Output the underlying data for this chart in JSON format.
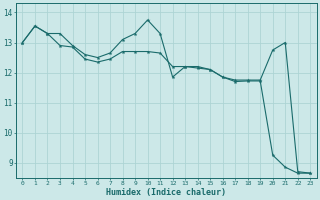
{
  "xlabel": "Humidex (Indice chaleur)",
  "bg_color": "#cce8e8",
  "grid_color": "#add4d4",
  "line_color": "#1a6b6b",
  "xlim": [
    -0.5,
    23.5
  ],
  "ylim": [
    8.5,
    14.3
  ],
  "yticks": [
    9,
    10,
    11,
    12,
    13,
    14
  ],
  "xticks": [
    0,
    1,
    2,
    3,
    4,
    5,
    6,
    7,
    8,
    9,
    10,
    11,
    12,
    13,
    14,
    15,
    16,
    17,
    18,
    19,
    20,
    21,
    22,
    23
  ],
  "line1_x": [
    0,
    1,
    2,
    3,
    4,
    5,
    6,
    7,
    8,
    9,
    10,
    11,
    12,
    13,
    14,
    15,
    16,
    17,
    18,
    19,
    20,
    21,
    22,
    23
  ],
  "line1_y": [
    13.0,
    13.55,
    13.3,
    13.3,
    12.9,
    12.6,
    12.5,
    12.65,
    13.1,
    13.3,
    13.75,
    13.3,
    11.85,
    12.2,
    12.2,
    12.1,
    11.85,
    11.75,
    11.75,
    11.75,
    12.75,
    13.0,
    8.7,
    8.65
  ],
  "line2_x": [
    0,
    1,
    2,
    3,
    4,
    5,
    6,
    7,
    8,
    9,
    10,
    11,
    12,
    13,
    14,
    15,
    16,
    17,
    18,
    19,
    20,
    21,
    22,
    23
  ],
  "line2_y": [
    13.0,
    13.55,
    13.3,
    12.9,
    12.85,
    12.45,
    12.35,
    12.45,
    12.7,
    12.7,
    12.7,
    12.65,
    12.2,
    12.2,
    12.15,
    12.1,
    11.85,
    11.7,
    11.72,
    11.72,
    9.25,
    8.85,
    8.65,
    8.65
  ]
}
